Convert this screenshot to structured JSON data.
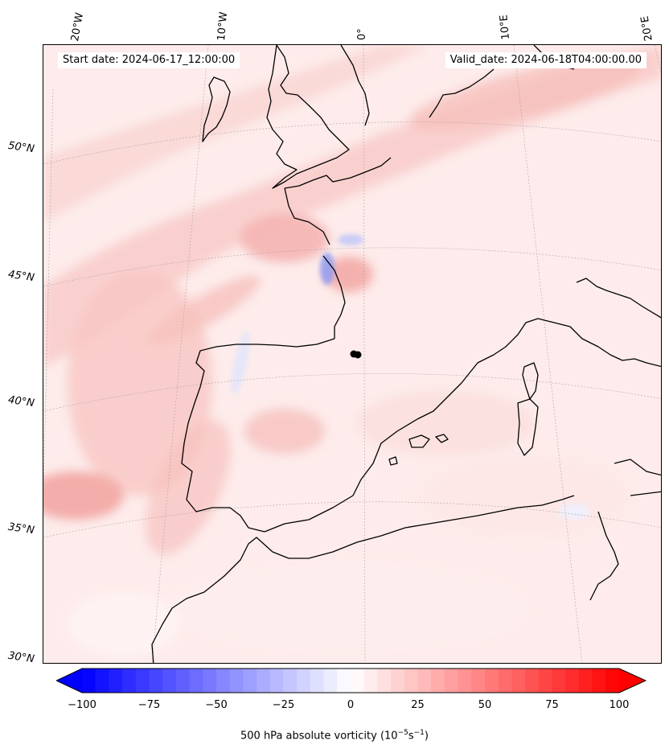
{
  "header": {
    "start_date": "Start date: 2024-06-17_12:00:00",
    "valid_date": "Valid_date: 2024-06-18T04:00:00.00"
  },
  "latitude_labels": [
    "50°N",
    "45°N",
    "40°N",
    "35°N",
    "30°N"
  ],
  "longitude_labels": [
    "20°W",
    "10°W",
    "0°",
    "10°E",
    "20°E"
  ],
  "colorbar": {
    "ticks": [
      "−100",
      "−75",
      "−50",
      "−25",
      "0",
      "25",
      "50",
      "75",
      "100"
    ],
    "label_prefix": "500 hPa absolute vorticity (10",
    "label_exp1": "−5",
    "label_mid": "s",
    "label_exp2": "−1",
    "label_suffix": ")",
    "min": -100,
    "max": 100,
    "colormap": "bwr",
    "extend": "both",
    "colors": {
      "negative": "#0000ff",
      "zero": "#ffffff",
      "positive": "#ff0000"
    }
  },
  "map": {
    "projection": "Lambert conformal",
    "field": "500 hPa absolute vorticity",
    "coastline_color": "#000000",
    "background_shade": "#fdeceb"
  }
}
